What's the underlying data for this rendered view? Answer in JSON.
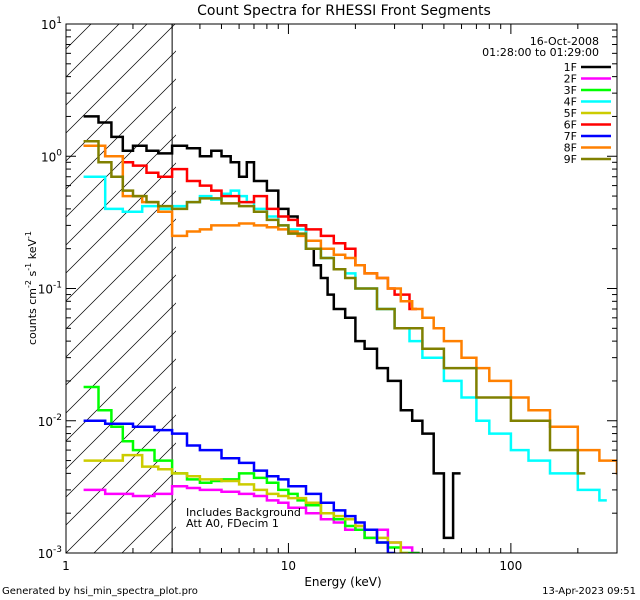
{
  "chart_data": {
    "type": "line",
    "subtype": "step",
    "title": "Count Spectra for RHESSI Front Segments",
    "xlabel": "Energy (keV)",
    "ylabel": "counts cm",
    "ylabel_sup1": "-2",
    "ylabel_mid": " s",
    "ylabel_sup2": "-1",
    "ylabel_end": " keV",
    "ylabel_sup3": "-1",
    "x_scale": "log",
    "y_scale": "log",
    "xlim": [
      1,
      300
    ],
    "ylim": [
      0.001,
      10
    ],
    "x_ticks": [
      {
        "value": 1,
        "label": "1"
      },
      {
        "value": 10,
        "label": "10"
      },
      {
        "value": 100,
        "label": "100"
      }
    ],
    "y_ticks": [
      {
        "value": 0.001,
        "base": "10",
        "exp": "-3"
      },
      {
        "value": 0.01,
        "base": "10",
        "exp": "-2"
      },
      {
        "value": 0.1,
        "base": "10",
        "exp": "-1"
      },
      {
        "value": 1,
        "base": "10",
        "exp": "0"
      },
      {
        "value": 10,
        "base": "10",
        "exp": "1"
      }
    ],
    "date_label": "16-Oct-2008",
    "time_label": "01:28:00 to 01:29:00",
    "legend_position": "top-right",
    "annotation_line1": "Includes Background",
    "annotation_line2": "Att A0, FDecim 1",
    "hatched_region_max_energy": 3,
    "series": [
      {
        "name": "1F",
        "color": "#000000",
        "x": [
          1.2,
          1.4,
          1.6,
          1.8,
          2.0,
          2.3,
          2.6,
          3.0,
          3.5,
          4.0,
          4.5,
          5.0,
          5.5,
          6.0,
          6.5,
          7,
          8,
          9,
          10,
          11,
          12,
          13,
          14,
          15,
          16,
          18,
          20,
          22,
          25,
          28,
          32,
          36,
          40,
          45,
          50,
          55
        ],
        "y": [
          2.0,
          1.8,
          1.4,
          1.1,
          1.2,
          1.1,
          1.05,
          1.2,
          1.15,
          1.0,
          1.1,
          1.0,
          0.9,
          0.7,
          0.9,
          0.65,
          0.55,
          0.4,
          0.35,
          0.3,
          0.2,
          0.15,
          0.12,
          0.09,
          0.07,
          0.06,
          0.04,
          0.035,
          0.025,
          0.02,
          0.012,
          0.01,
          0.008,
          0.004,
          0.0013,
          0.004
        ]
      },
      {
        "name": "2F",
        "color": "#ff00ff",
        "x": [
          1.2,
          1.5,
          2.0,
          2.5,
          3.0,
          3.5,
          4,
          5,
          6,
          7,
          8,
          9,
          10,
          12,
          14,
          16,
          18,
          20,
          22,
          25,
          28,
          32,
          36
        ],
        "y": [
          0.003,
          0.0028,
          0.0027,
          0.0028,
          0.0032,
          0.0031,
          0.003,
          0.0029,
          0.0028,
          0.0027,
          0.0025,
          0.0024,
          0.0022,
          0.002,
          0.0018,
          0.0017,
          0.0015,
          0.0016,
          0.0013,
          0.0015,
          0.0012,
          0.0011,
          0.001
        ]
      },
      {
        "name": "3F",
        "color": "#00ff00",
        "x": [
          1.2,
          1.4,
          1.6,
          1.8,
          2.0,
          2.5,
          3.0,
          3.5,
          4,
          4.5,
          5,
          6,
          7,
          8,
          9,
          10,
          11,
          12,
          14,
          16,
          18,
          20,
          22,
          25,
          28,
          32,
          36
        ],
        "y": [
          0.018,
          0.012,
          0.009,
          0.007,
          0.006,
          0.005,
          0.004,
          0.0036,
          0.0034,
          0.0035,
          0.0036,
          0.004,
          0.0037,
          0.0034,
          0.003,
          0.0028,
          0.0025,
          0.0023,
          0.002,
          0.0018,
          0.0016,
          0.0015,
          0.0013,
          0.0012,
          0.0011,
          0.001,
          0.001
        ]
      },
      {
        "name": "4F",
        "color": "#00ffff",
        "x": [
          1.2,
          1.5,
          1.8,
          2.2,
          2.6,
          3.0,
          3.5,
          4,
          4.5,
          5,
          5.5,
          6,
          6.5,
          7,
          8,
          9,
          10,
          12,
          14,
          16,
          18,
          20,
          25,
          30,
          35,
          40,
          50,
          60,
          70,
          80,
          100,
          120,
          150,
          200,
          250
        ],
        "y": [
          0.7,
          0.4,
          0.38,
          0.42,
          0.4,
          0.42,
          0.45,
          0.5,
          0.47,
          0.52,
          0.55,
          0.5,
          0.45,
          0.4,
          0.35,
          0.3,
          0.28,
          0.2,
          0.17,
          0.14,
          0.13,
          0.1,
          0.07,
          0.05,
          0.04,
          0.03,
          0.02,
          0.015,
          0.01,
          0.008,
          0.006,
          0.005,
          0.004,
          0.003,
          0.0025
        ]
      },
      {
        "name": "5F",
        "color": "#cccc00",
        "x": [
          1.2,
          1.5,
          1.8,
          2.2,
          2.6,
          3.0,
          3.5,
          4,
          5,
          6,
          7,
          8,
          9,
          10,
          12,
          14,
          16,
          18,
          20,
          22,
          25,
          28,
          32
        ],
        "y": [
          0.005,
          0.005,
          0.0055,
          0.0045,
          0.0043,
          0.004,
          0.0038,
          0.0036,
          0.0035,
          0.0033,
          0.003,
          0.0028,
          0.0027,
          0.0026,
          0.0024,
          0.002,
          0.0019,
          0.0018,
          0.0016,
          0.0015,
          0.0013,
          0.0012,
          0.001
        ]
      },
      {
        "name": "6F",
        "color": "#ff0000",
        "x": [
          1.2,
          1.5,
          1.8,
          2.0,
          2.3,
          2.6,
          3.0,
          3.5,
          4,
          4.5,
          5,
          6,
          7,
          8,
          9,
          10,
          11,
          12,
          14,
          16,
          18,
          20,
          22,
          25,
          28,
          30,
          35
        ],
        "y": [
          1.2,
          1.0,
          0.9,
          0.85,
          0.75,
          0.7,
          0.8,
          0.65,
          0.6,
          0.55,
          0.5,
          0.45,
          0.5,
          0.4,
          0.35,
          0.33,
          0.3,
          0.28,
          0.25,
          0.22,
          0.2,
          0.15,
          0.13,
          0.12,
          0.1,
          0.09,
          0.07
        ]
      },
      {
        "name": "7F",
        "color": "#0000ff",
        "x": [
          1.2,
          1.5,
          2.0,
          2.5,
          3.0,
          3.5,
          4,
          5,
          6,
          7,
          8,
          9,
          10,
          12,
          14,
          16,
          18,
          20,
          22,
          25,
          28
        ],
        "y": [
          0.01,
          0.0095,
          0.009,
          0.0085,
          0.008,
          0.0065,
          0.006,
          0.0052,
          0.0048,
          0.0042,
          0.0038,
          0.0036,
          0.0032,
          0.0028,
          0.0024,
          0.0021,
          0.0019,
          0.0017,
          0.0015,
          0.0012,
          0.001
        ]
      },
      {
        "name": "8F",
        "color": "#ff8000",
        "x": [
          1.2,
          1.5,
          1.8,
          2.2,
          2.6,
          3.0,
          3.5,
          4,
          4.5,
          5,
          6,
          7,
          8,
          9,
          10,
          11,
          12,
          14,
          16,
          18,
          20,
          22,
          25,
          28,
          32,
          36,
          40,
          45,
          50,
          60,
          70,
          80,
          100,
          120,
          150,
          200,
          250,
          300
        ],
        "y": [
          1.2,
          1.0,
          0.5,
          0.45,
          0.38,
          0.25,
          0.27,
          0.28,
          0.3,
          0.3,
          0.31,
          0.3,
          0.29,
          0.28,
          0.27,
          0.25,
          0.23,
          0.2,
          0.18,
          0.17,
          0.15,
          0.13,
          0.12,
          0.1,
          0.08,
          0.07,
          0.06,
          0.05,
          0.04,
          0.03,
          0.025,
          0.02,
          0.015,
          0.012,
          0.009,
          0.006,
          0.005,
          0.004
        ]
      },
      {
        "name": "9F",
        "color": "#808000",
        "x": [
          1.2,
          1.4,
          1.6,
          1.8,
          2.0,
          2.3,
          2.6,
          3.0,
          3.5,
          4,
          5,
          6,
          7,
          8,
          9,
          10,
          12,
          14,
          16,
          18,
          20,
          25,
          30,
          40,
          50,
          70,
          100,
          150,
          200
        ],
        "y": [
          1.3,
          0.9,
          0.7,
          0.55,
          0.5,
          0.45,
          0.42,
          0.4,
          0.45,
          0.48,
          0.44,
          0.42,
          0.38,
          0.33,
          0.3,
          0.26,
          0.2,
          0.17,
          0.14,
          0.12,
          0.1,
          0.07,
          0.05,
          0.035,
          0.025,
          0.015,
          0.01,
          0.006,
          0.004
        ]
      }
    ]
  },
  "footer": {
    "generator": "Generated by hsi_min_spectra_plot.pro",
    "timestamp": "13-Apr-2023 09:51"
  }
}
